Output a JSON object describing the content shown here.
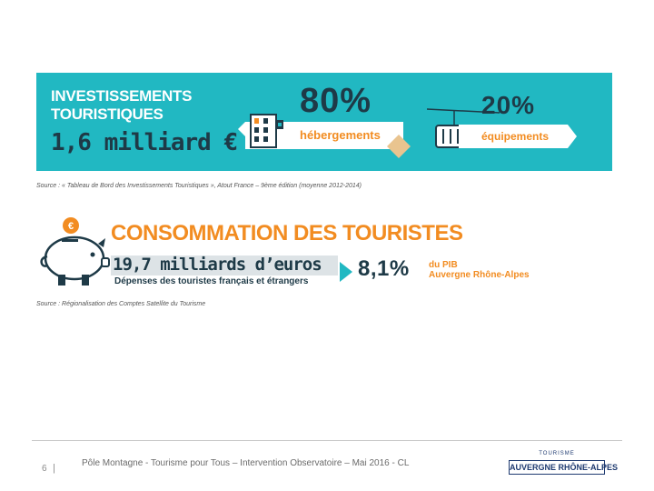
{
  "investment": {
    "title": "INVESTISSEMENTS TOURISTIQUES",
    "amount": "1,6 milliard €",
    "hebergements": {
      "percent": "80%",
      "label": "hébergements"
    },
    "equipements": {
      "percent": "20%",
      "label": "équipements"
    },
    "source": "Source : « Tableau de Bord des Investissements Touristiques », Atout France – 9ème édition (moyenne 2012-2014)"
  },
  "consumption": {
    "title": "CONSOMMATION DES TOURISTES",
    "amount": "19,7 milliards d’euros",
    "subtitle": "Dépenses des touristes français et étrangers",
    "share": "8,1%",
    "share_label_line1": "du PIB",
    "share_label_line2": "Auvergne Rhône-Alpes",
    "source": "Source : Régionalisation des Comptes Satellite du Tourisme"
  },
  "footer": {
    "page_number": "6",
    "separator": "|",
    "text": "Pôle Montagne - Tourisme pour Tous – Intervention Observatoire – Mai 2016 - CL",
    "logo_small": "TOURISME",
    "logo_main": "AUVERGNE RHÔNE-ALPES"
  },
  "colors": {
    "teal": "#21b8c2",
    "navy": "#1e3a47",
    "orange": "#f28c21",
    "light_grey": "#dde3e6",
    "diamond": "#e9c48f"
  }
}
